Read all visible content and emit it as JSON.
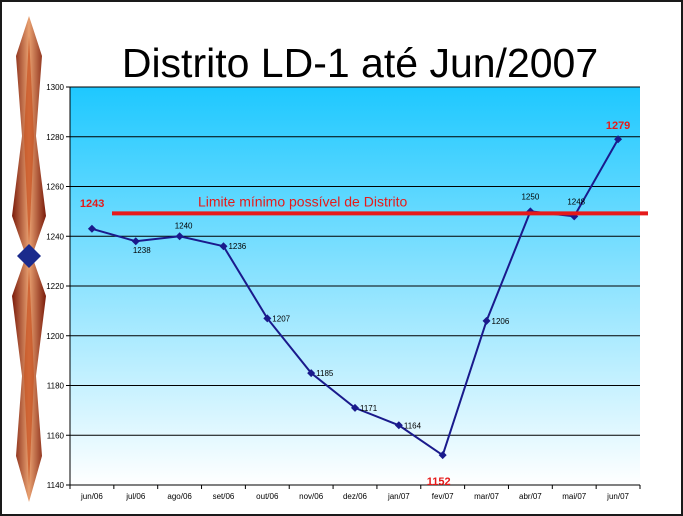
{
  "slide": {
    "title": "Distrito LD-1 até Jun/2007"
  },
  "chart_data": {
    "type": "line",
    "title": "Distrito LD-1 até Jun/2007",
    "categories": [
      "jun/06",
      "jul/06",
      "ago/06",
      "set/06",
      "out/06",
      "nov/06",
      "dez/06",
      "jan/07",
      "fev/07",
      "mar/07",
      "abr/07",
      "mai/07",
      "jun/07"
    ],
    "values": [
      1243,
      1238,
      1240,
      1236,
      1207,
      1185,
      1171,
      1164,
      1152,
      1206,
      1250,
      1248,
      1279
    ],
    "ylim": [
      1140,
      1300
    ],
    "yticks": [
      1140,
      1160,
      1180,
      1200,
      1220,
      1240,
      1260,
      1280,
      1300
    ],
    "grid": true,
    "line_color": "#1a1a8c",
    "highlighted_labels": [
      0,
      8,
      12
    ],
    "reference_line": {
      "value": 1250,
      "label": "Limite mínimo possível de Distrito",
      "color": "#e51a1a"
    }
  },
  "colors": {
    "plot_top": "#1ec8ff",
    "plot_bottom": "#ffffff",
    "series": "#1a1a8c",
    "accent": "#e51a1a"
  }
}
